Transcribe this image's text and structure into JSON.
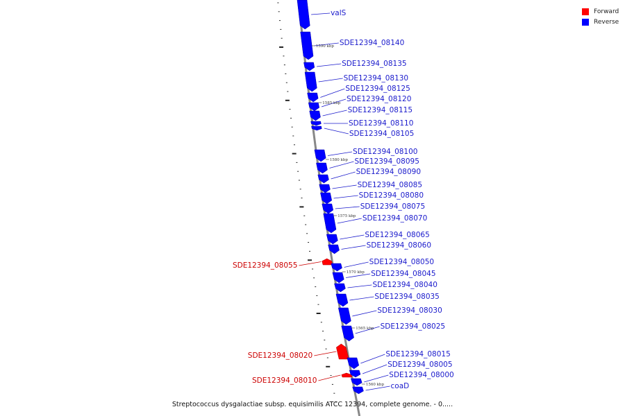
{
  "legend": {
    "forward_label": "Forward",
    "reverse_label": "Reverse",
    "forward_color": "#ff0000",
    "reverse_color": "#0000ff"
  },
  "colors": {
    "forward_label": "#cc0000",
    "reverse_label": "#1a1acc",
    "backbone": "#888888"
  },
  "footer": {
    "text": "Streptococcus dysgalactiae subsp. equisimilis ATCC 12394, complete genome. - 0....."
  },
  "coordinate_labels": [
    "1590 kbp",
    "1585 kbp",
    "1580 kbp",
    "1575 kbp",
    "1570 kbp",
    "1565 kbp",
    "1560 kbp"
  ],
  "genes": [
    {
      "name": "valS",
      "strand": "reverse"
    },
    {
      "name": "SDE12394_08140",
      "strand": "reverse"
    },
    {
      "name": "SDE12394_08135",
      "strand": "reverse"
    },
    {
      "name": "SDE12394_08130",
      "strand": "reverse"
    },
    {
      "name": "SDE12394_08125",
      "strand": "reverse"
    },
    {
      "name": "SDE12394_08120",
      "strand": "reverse"
    },
    {
      "name": "SDE12394_08115",
      "strand": "reverse"
    },
    {
      "name": "SDE12394_08110",
      "strand": "reverse"
    },
    {
      "name": "SDE12394_08105",
      "strand": "reverse"
    },
    {
      "name": "SDE12394_08100",
      "strand": "reverse"
    },
    {
      "name": "SDE12394_08095",
      "strand": "reverse"
    },
    {
      "name": "SDE12394_08090",
      "strand": "reverse"
    },
    {
      "name": "SDE12394_08085",
      "strand": "reverse"
    },
    {
      "name": "SDE12394_08080",
      "strand": "reverse"
    },
    {
      "name": "SDE12394_08075",
      "strand": "reverse"
    },
    {
      "name": "SDE12394_08070",
      "strand": "reverse"
    },
    {
      "name": "SDE12394_08065",
      "strand": "reverse"
    },
    {
      "name": "SDE12394_08060",
      "strand": "reverse"
    },
    {
      "name": "SDE12394_08055",
      "strand": "forward"
    },
    {
      "name": "SDE12394_08050",
      "strand": "reverse"
    },
    {
      "name": "SDE12394_08045",
      "strand": "reverse"
    },
    {
      "name": "SDE12394_08040",
      "strand": "reverse"
    },
    {
      "name": "SDE12394_08035",
      "strand": "reverse"
    },
    {
      "name": "SDE12394_08030",
      "strand": "reverse"
    },
    {
      "name": "SDE12394_08025",
      "strand": "reverse"
    },
    {
      "name": "SDE12394_08020",
      "strand": "forward"
    },
    {
      "name": "SDE12394_08015",
      "strand": "reverse"
    },
    {
      "name": "SDE12394_08010",
      "strand": "forward"
    },
    {
      "name": "SDE12394_08005",
      "strand": "reverse"
    },
    {
      "name": "SDE12394_08000",
      "strand": "reverse"
    },
    {
      "name": "coaD",
      "strand": "reverse"
    }
  ]
}
